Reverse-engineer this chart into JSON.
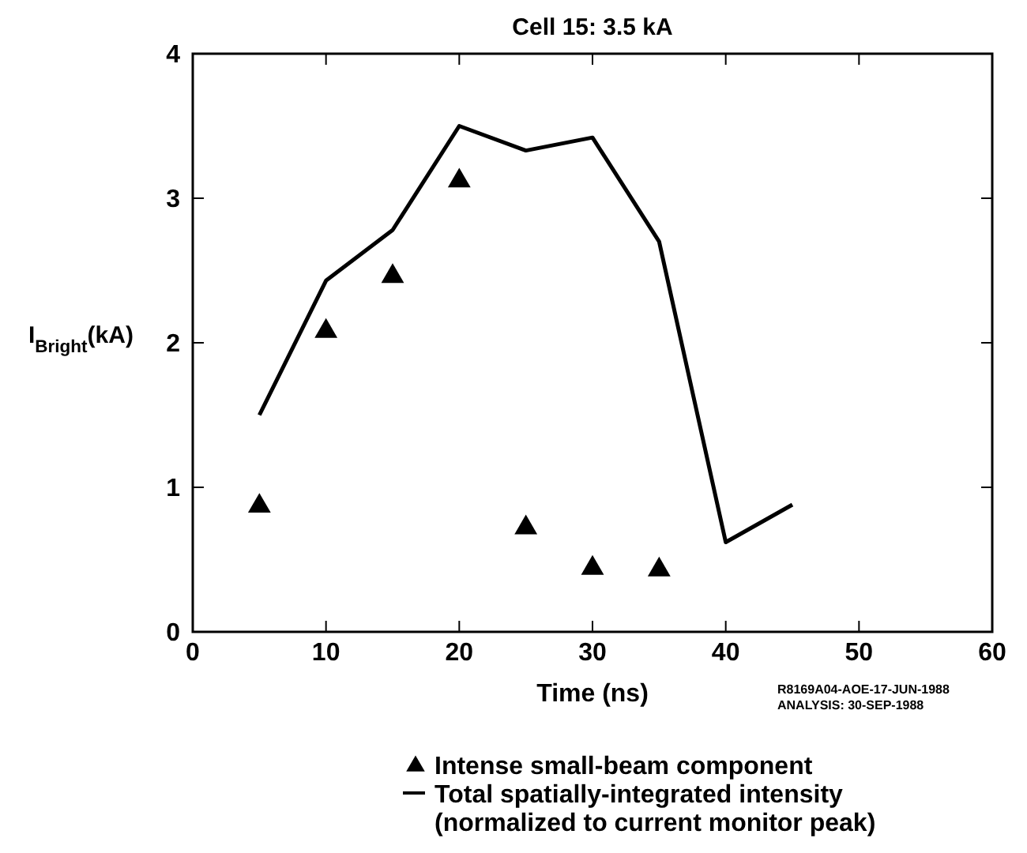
{
  "chart_data": {
    "type": "line",
    "title": "Cell 15:  3.5 kA",
    "xlabel": "Time (ns)",
    "ylabel": "I$_{Bright}$(kA)",
    "xlim": [
      0,
      60
    ],
    "xticks": [
      0,
      10,
      20,
      30,
      40,
      50,
      60
    ],
    "ylim": [
      0,
      4
    ],
    "yticks": [
      0,
      1,
      2,
      3,
      4
    ],
    "grid": false,
    "legend": "bottom",
    "series": [
      {
        "name": "Intense small-beam component",
        "type": "scatter",
        "marker": "triangle",
        "color": "#000000",
        "x": [
          5,
          10,
          15,
          20,
          25,
          30,
          35
        ],
        "values": [
          0.87,
          2.08,
          2.46,
          3.12,
          0.72,
          0.44,
          0.43
        ]
      },
      {
        "name": "Total spatially-integrated intensity (normalized to current monitor peak)",
        "marker": "none",
        "line_style": "solid",
        "color": "#000000",
        "x": [
          5,
          10,
          15,
          20,
          25,
          30,
          35,
          40,
          45
        ],
        "values": [
          1.5,
          2.43,
          2.78,
          3.5,
          3.33,
          3.42,
          2.7,
          0.62,
          0.88
        ]
      }
    ],
    "annotations": [
      "R8169A04-AOE-17-JUN-1988",
      "ANALYSIS:  30-SEP-1988"
    ]
  }
}
